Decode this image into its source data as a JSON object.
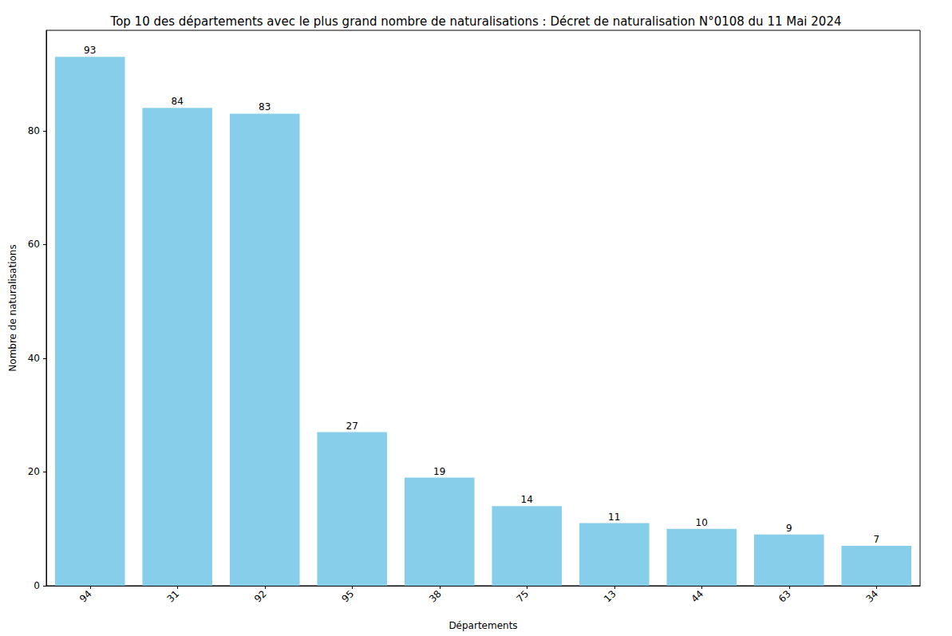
{
  "chart_data": {
    "type": "bar",
    "title": "Top 10 des départements avec le plus grand nombre de naturalisations : Décret de naturalisation N°0108 du 11 Mai 2024",
    "x_label": "Départements",
    "y_label": "Nombre de naturalisations",
    "categories": [
      "94",
      "31",
      "92",
      "95",
      "38",
      "75",
      "13",
      "44",
      "63",
      "34"
    ],
    "values": [
      93,
      84,
      83,
      27,
      19,
      14,
      11,
      10,
      9,
      7
    ],
    "color": "#87ceeb",
    "ylim": [
      0,
      97.65
    ],
    "yticks": [
      0,
      20,
      40,
      60,
      80
    ],
    "grid": false,
    "data_labels": true
  }
}
